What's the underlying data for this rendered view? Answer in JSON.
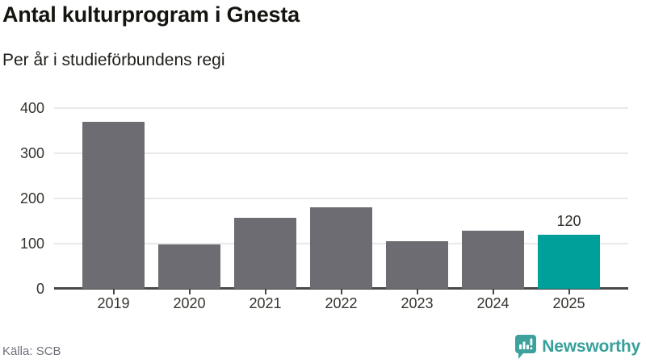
{
  "header": {
    "title": "Antal kulturprogram i Gnesta",
    "subtitle": "Per år i studieförbundens regi"
  },
  "footer": {
    "source": "Källa: SCB",
    "brand": {
      "name": "Newsworthy",
      "icon": "newsworthy-chart-bubble-icon",
      "color": "#38a09b"
    }
  },
  "colors": {
    "bar_default": "#6d6c72",
    "bar_highlight": "#00a09a",
    "gridline": "#e9e9e9",
    "axis_line": "#48474a",
    "tick": "#48474a",
    "label_text": "#34332e",
    "value_label_text": "#2b2b27"
  },
  "chart_data": {
    "type": "bar",
    "title": "Antal kulturprogram i Gnesta",
    "subtitle": "Per år i studieförbundens regi",
    "categories": [
      "2019",
      "2020",
      "2021",
      "2022",
      "2023",
      "2024",
      "2025"
    ],
    "values": [
      370,
      98,
      157,
      180,
      105,
      128,
      120
    ],
    "highlight_index": 6,
    "data_labels": [
      {
        "index": 6,
        "text": "120"
      }
    ],
    "xlabel": "",
    "ylabel": "",
    "ylim": [
      0,
      400
    ],
    "yticks": [
      0,
      100,
      200,
      300,
      400
    ],
    "grid": true,
    "legend": "none"
  }
}
